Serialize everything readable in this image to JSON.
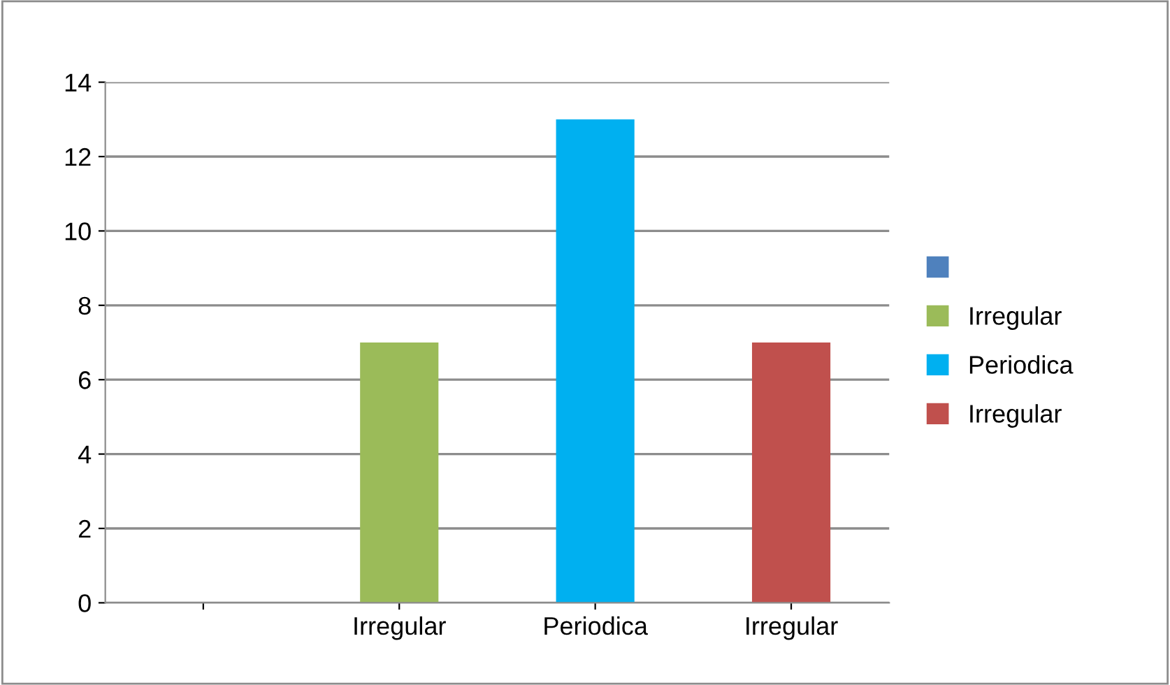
{
  "chart_data": {
    "type": "bar",
    "categories": [
      null,
      "Irregular",
      "Periodica",
      "Irregular"
    ],
    "series": [
      {
        "color": "#4f81bd",
        "values": [
          null,
          null,
          null,
          null
        ]
      },
      {
        "name": "Irregular",
        "color": "#9bbb59",
        "values": [
          null,
          7,
          null,
          null
        ]
      },
      {
        "name": "Periodica",
        "color": "#00b0f0",
        "values": [
          null,
          null,
          13,
          null
        ]
      },
      {
        "name": "Irregular",
        "color": "#c0504d",
        "values": [
          null,
          null,
          null,
          7
        ]
      }
    ],
    "ylim": [
      0,
      14
    ],
    "yticks": [
      0,
      2,
      4,
      6,
      8,
      10,
      12,
      14
    ],
    "grid": "y",
    "legend": "right"
  }
}
